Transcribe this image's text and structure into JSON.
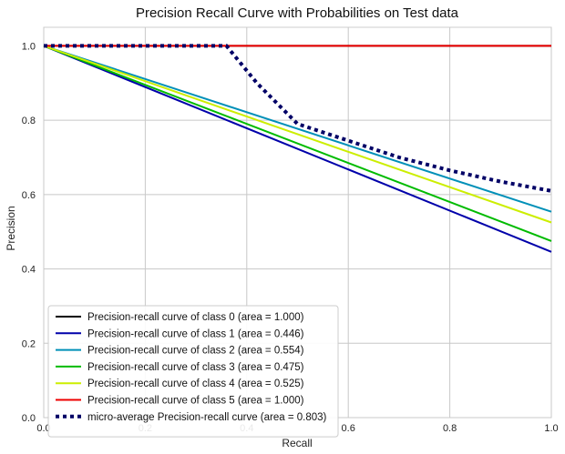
{
  "chart_data": {
    "type": "line",
    "title": "Precision Recall Curve with Probabilities on Test data",
    "xlabel": "Recall",
    "ylabel": "Precision",
    "xlim": [
      0.0,
      1.0
    ],
    "ylim": [
      0.0,
      1.05
    ],
    "xticks": [
      0.0,
      0.2,
      0.4,
      0.6,
      0.8,
      1.0
    ],
    "yticks": [
      0.0,
      0.2,
      0.4,
      0.6,
      0.8,
      1.0
    ],
    "xtick_labels": [
      "0.0",
      "0.2",
      "0.4",
      "0.6",
      "0.8",
      "1.0"
    ],
    "ytick_labels": [
      "0.0",
      "0.2",
      "0.4",
      "0.6",
      "0.8",
      "1.0"
    ],
    "grid": true,
    "legend_position": "bottom-left",
    "series": [
      {
        "name": "Precision-recall curve of class 0 (area = 1.000)",
        "color": "#000000",
        "style": "solid",
        "x": [
          0.0,
          1.0
        ],
        "y": [
          1.0,
          1.0
        ]
      },
      {
        "name": "Precision-recall curve of class 1 (area = 0.446)",
        "color": "#0000aa",
        "style": "solid",
        "x": [
          0.0,
          1.0
        ],
        "y": [
          1.0,
          0.446
        ]
      },
      {
        "name": "Precision-recall curve of class 2 (area = 0.554)",
        "color": "#0090b8",
        "style": "solid",
        "x": [
          0.0,
          1.0
        ],
        "y": [
          1.0,
          0.554
        ]
      },
      {
        "name": "Precision-recall curve of class 3 (area = 0.475)",
        "color": "#00bb00",
        "style": "solid",
        "x": [
          0.0,
          1.0
        ],
        "y": [
          1.0,
          0.475
        ]
      },
      {
        "name": "Precision-recall curve of class 4 (area = 0.525)",
        "color": "#ccee00",
        "style": "solid",
        "x": [
          0.0,
          1.0
        ],
        "y": [
          1.0,
          0.525
        ]
      },
      {
        "name": "Precision-recall curve of class 5 (area = 1.000)",
        "color": "#ee0000",
        "style": "solid",
        "x": [
          0.0,
          1.0
        ],
        "y": [
          1.0,
          1.0
        ]
      },
      {
        "name": "micro-average Precision-recall curve (area = 0.803)",
        "color": "#000066",
        "style": "dotted",
        "x": [
          0.0,
          0.36,
          0.42,
          0.5,
          0.6,
          0.7,
          0.8,
          0.9,
          1.0
        ],
        "y": [
          1.0,
          1.0,
          0.9,
          0.79,
          0.745,
          0.7,
          0.665,
          0.635,
          0.61
        ]
      }
    ]
  }
}
